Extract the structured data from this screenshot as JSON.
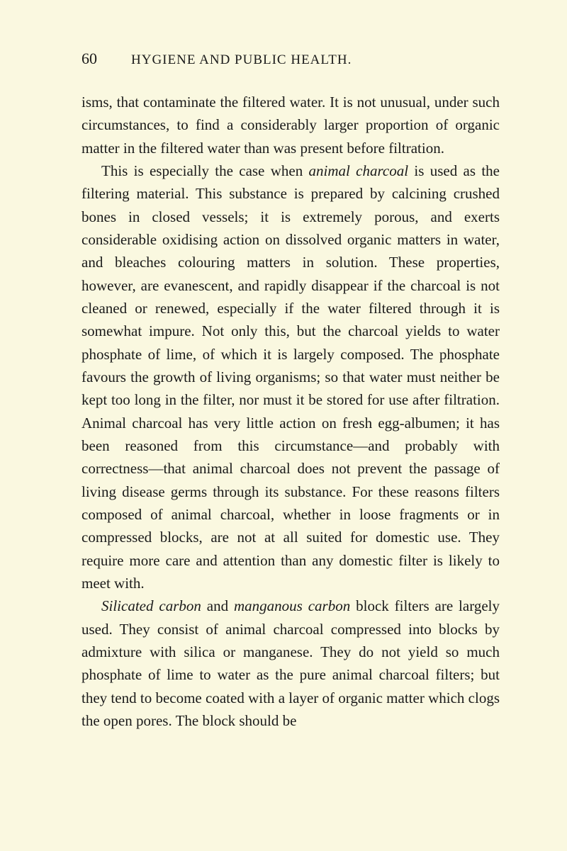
{
  "page": {
    "number": "60",
    "runningHead": "HYGIENE AND PUBLIC HEALTH.",
    "background": "#faf8e0",
    "text_color": "#1a1a1a",
    "body_fontsize": 21,
    "line_height": 1.54,
    "header_fontsize_num": 22,
    "header_fontsize_head": 19
  },
  "p1": {
    "t1": "isms, that contaminate the filtered water. It is not unusual, under such circumstances, to find a con­siderably larger proportion of organic matter in the filtered water than was present before filtration."
  },
  "p2": {
    "t1": "This is especially the case when ",
    "i1": "animal charcoal",
    "t2": " is used as the filtering material. This substance is pre­pared by calcining crushed bones in closed vessels; it is extremely porous, and exerts considerable oxidising action on dissolved organic matters in water, and bleaches colouring matters in solution. These proper­ties, however, are evanescent, and rapidly disappear if the charcoal is not cleaned or renewed, especially if the water filtered through it is somewhat impure. Not only this, but the charcoal yields to water phosphate of lime, of which it is largely composed. The phosphate favours the growth of living organisms; so that water must neither be kept too long in the filter, nor must it be stored for use after filtration. Animal charcoal has very little action on fresh egg-albumen; it has been reasoned from this circumstance—and probably with correctness—that animal charcoal does not prevent the passage of living disease germs through its substance. For these reasons filters composed of animal charcoal, whether in loose fragments or in compressed blocks, are not at all suited for domestic use. They require more care and attention than any domestic filter is likely to meet with."
  },
  "p3": {
    "i1": "Silicated carbon",
    "t1": " and ",
    "i2": "manganous carbon",
    "t2": " block filters are largely used. They consist of animal charcoal com­pressed into blocks by admixture with silica or man­ganese. They do not yield so much phosphate of lime to water as the pure animal charcoal filters; but they tend to become coated with a layer of organic matter which clogs the open pores. The block should be"
  }
}
